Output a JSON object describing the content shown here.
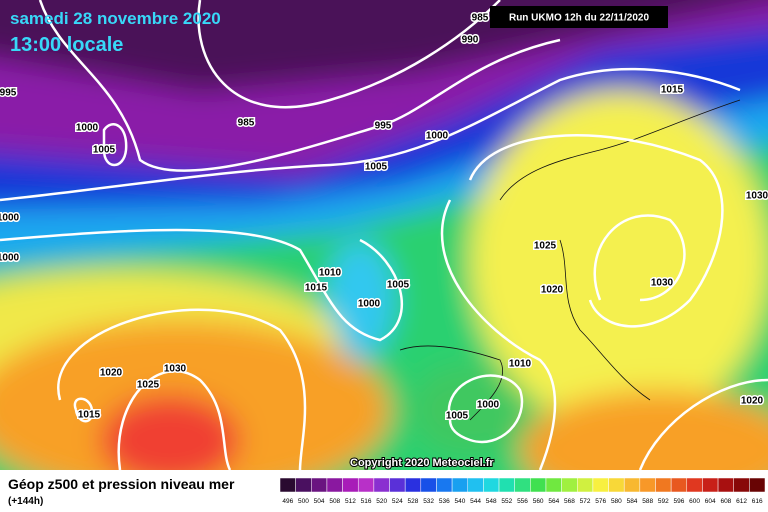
{
  "header": {
    "date": "samedi 28 novembre 2020",
    "time": "13:00 locale",
    "run": "Run UKMO 12h du 22/11/2020"
  },
  "isobar_labels": [
    985,
    990,
    995,
    1000,
    1005,
    985,
    995,
    1000,
    1005,
    1015,
    1030,
    1000,
    1000,
    1025,
    1020,
    1030,
    1010,
    1015,
    1000,
    1005,
    1020,
    1025,
    1030,
    1015,
    1010,
    1005,
    1000,
    1020
  ],
  "copyright": "Copyright 2020 Meteociel.fr",
  "legend": {
    "title": "Géop z500 et pression niveau mer",
    "subtitle": "(+144h)",
    "scale": [
      496,
      500,
      504,
      508,
      512,
      516,
      520,
      524,
      528,
      532,
      536,
      540,
      544,
      548,
      552,
      556,
      560,
      564,
      568,
      572,
      576,
      580,
      584,
      588,
      592,
      596,
      600,
      604,
      608,
      612,
      616
    ]
  }
}
